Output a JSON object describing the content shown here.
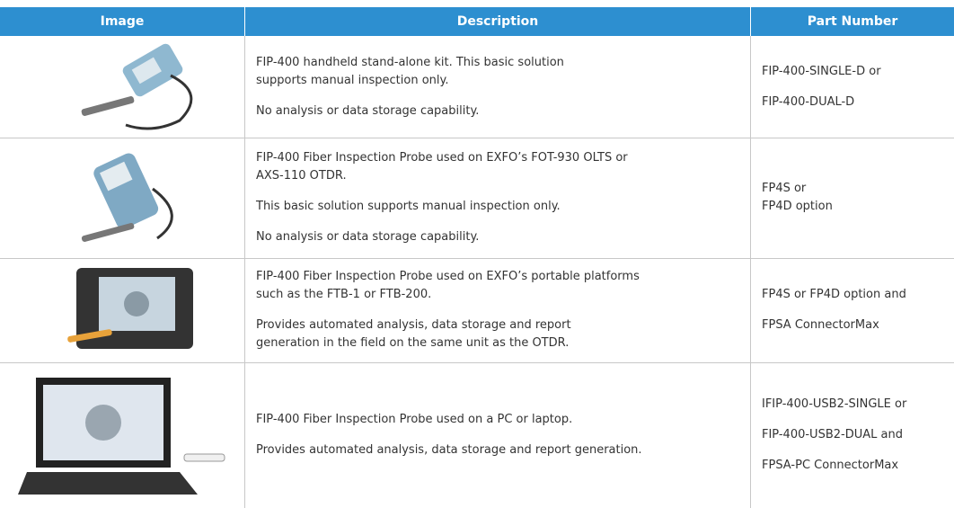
{
  "table": {
    "headers": [
      "Image",
      "Description",
      "Part Number"
    ],
    "rows": [
      {
        "description": [
          [
            "FIP-400 handheld stand-alone kit. This basic solution",
            "supports manual inspection only."
          ],
          [
            "No analysis or data storage capability."
          ]
        ],
        "part_number": [
          [
            "FIP-400-SINGLE-D or"
          ],
          [
            "FIP-400-DUAL-D"
          ]
        ]
      },
      {
        "description": [
          [
            "FIP-400 Fiber Inspection Probe used on EXFO’s FOT-930 OLTS or",
            "AXS-110 OTDR."
          ],
          [
            "This basic solution supports manual inspection only."
          ],
          [
            "No analysis or data storage capability."
          ]
        ],
        "part_number": [
          [
            "FP4S or",
            "FP4D option"
          ]
        ]
      },
      {
        "description": [
          [
            "FIP-400 Fiber Inspection Probe used on EXFO’s portable platforms",
            "such as the FTB-1 or FTB-200."
          ],
          [
            "Provides automated analysis, data storage and report",
            "generation in the field on the same unit as the OTDR."
          ]
        ],
        "part_number": [
          [
            "FP4S or FP4D option and"
          ],
          [
            "FPSA ConnectorMax"
          ]
        ]
      },
      {
        "description": [
          [
            "FIP-400 Fiber Inspection Probe used on a PC or laptop."
          ],
          [
            "Provides automated analysis, data storage and report generation."
          ]
        ],
        "part_number": [
          [
            "IFIP-400-USB2-SINGLE or"
          ],
          [
            "FIP-400-USB2-DUAL and"
          ],
          [
            "FPSA-PC ConnectorMax"
          ]
        ]
      }
    ]
  }
}
